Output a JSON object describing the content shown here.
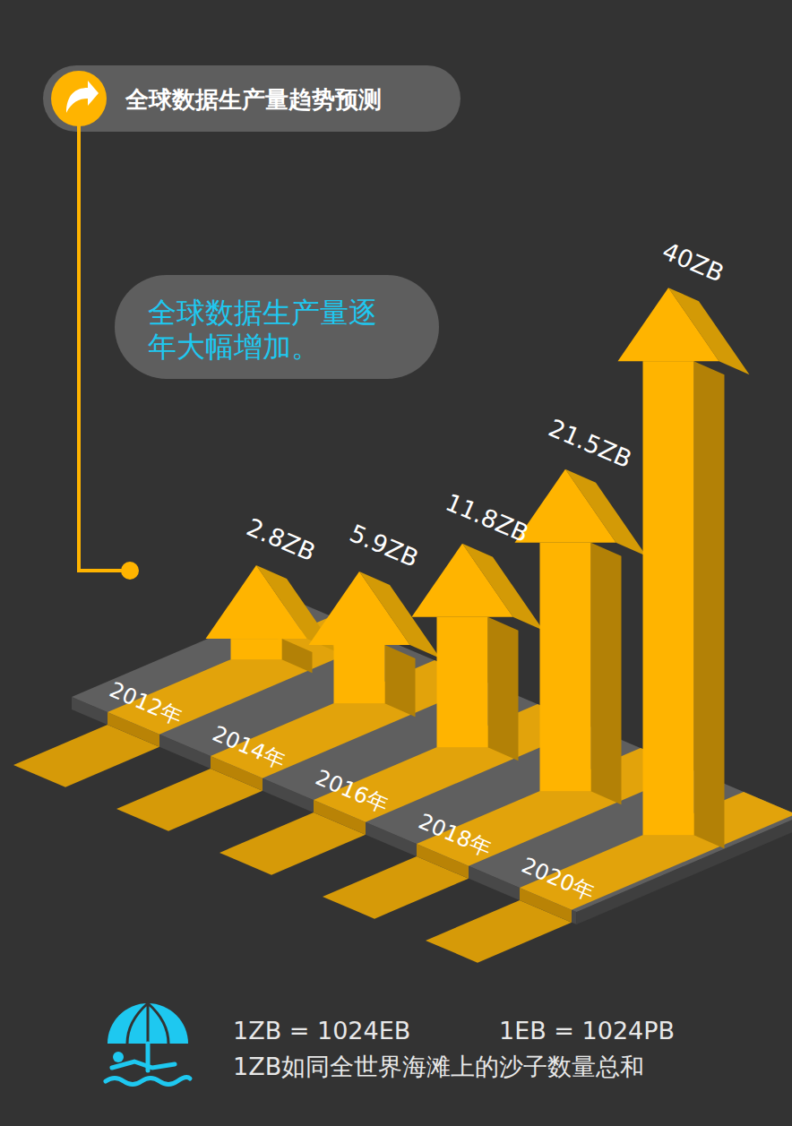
{
  "chart_data": {
    "type": "bar",
    "title": "全球数据生产量趋势预测",
    "annotation": "全球数据生产量逐年大幅增加。",
    "notes": [
      "1ZB = 1024EB",
      "1EB = 1024PB",
      "1ZB如同全世界海滩上的沙子数量总和"
    ],
    "categories": [
      "2012年",
      "2014年",
      "2016年",
      "2018年",
      "2020年"
    ],
    "values": [
      2.8,
      5.9,
      11.8,
      21.5,
      40
    ],
    "value_labels": [
      "2.8ZB",
      "5.9ZB",
      "11.8ZB",
      "21.5ZB",
      "40ZB"
    ],
    "color": "#ffb400",
    "data_labels": true,
    "tick_labels": "x"
  }
}
